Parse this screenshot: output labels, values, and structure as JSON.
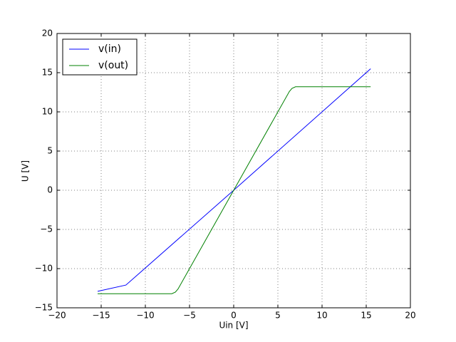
{
  "chart_data": {
    "type": "line",
    "xlabel": "Uin [V]",
    "ylabel": "U [V]",
    "series": [
      {
        "name": "v(in)",
        "color": "#0000ff",
        "x": [
          -15.4,
          -12.2,
          0,
          15.5
        ],
        "values": [
          -12.9,
          -12.1,
          0,
          15.5
        ]
      },
      {
        "name": "v(out)",
        "color": "#008000",
        "x": [
          -15.4,
          -7,
          -6.6,
          -6.3,
          0,
          6.3,
          6.6,
          7,
          15.5
        ],
        "values": [
          -13.2,
          -13.2,
          -13.0,
          -12.6,
          0,
          12.6,
          13.0,
          13.2,
          13.2
        ]
      }
    ],
    "xlim": [
      -20,
      20
    ],
    "xticks": [
      {
        "value": -20,
        "label": "−20"
      },
      {
        "value": -15,
        "label": "−15"
      },
      {
        "value": -10,
        "label": "−10"
      },
      {
        "value": -5,
        "label": "−5"
      },
      0,
      5,
      10,
      15,
      20
    ],
    "ylim": [
      -15,
      20
    ],
    "yticks": [
      {
        "value": -15,
        "label": "−15"
      },
      {
        "value": -10,
        "label": "−10"
      },
      {
        "value": -5,
        "label": "−5"
      },
      0,
      5,
      10,
      15,
      20
    ],
    "grid": true,
    "legend": "upper-left"
  }
}
